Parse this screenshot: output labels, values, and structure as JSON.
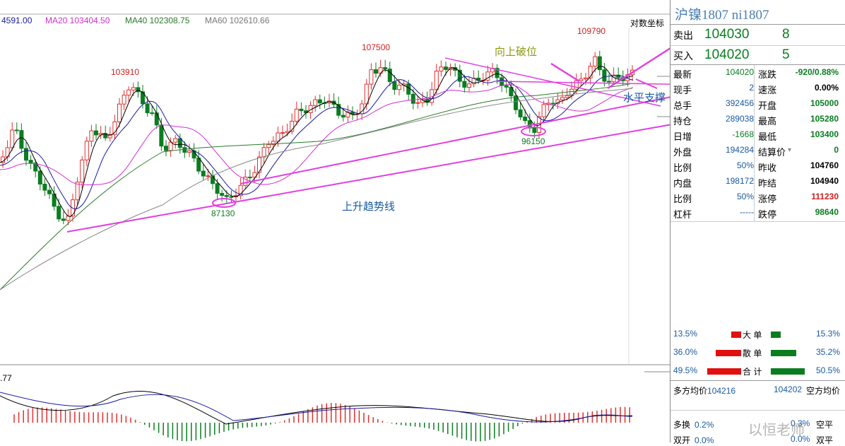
{
  "chart": {
    "legend": {
      "ma_first": "4591.00",
      "ma20": "MA20 103404.50",
      "ma40": "MA40 102308.75",
      "ma60": "MA60 102610.66"
    },
    "log_scale_button": "对数坐标",
    "annotations": {
      "high_107500": "107500",
      "high_103910": "103910",
      "high_109790": "109790",
      "low_87130": "87130",
      "low_96150": "96150",
      "breakout_up": "向上破位",
      "horizontal_support": "水平支撑",
      "uptrend_line": "上升趋势线"
    },
    "macd_label": ".77",
    "colors": {
      "up": "#e03030",
      "down": "#0a7d20",
      "ma5": "#000000",
      "ma10": "#1a1aa0",
      "ma20": "#d030d0",
      "ma40": "#2a7a2a",
      "ma60": "#888888",
      "annotation": "#e040e0"
    }
  },
  "panel": {
    "title": "沪镍1807  ni1807",
    "orderbook": {
      "sell_label": "卖出",
      "sell_price": "104030",
      "sell_volume": "8",
      "buy_label": "买入",
      "buy_price": "104020",
      "buy_volume": "5"
    },
    "stats": [
      {
        "l1": "最新",
        "v1": "104020",
        "l2": "涨跌",
        "v2": "-920/0.88%"
      },
      {
        "l1": "现手",
        "v1": "2",
        "l2": "速涨",
        "v2": "0.00%"
      },
      {
        "l1": "总手",
        "v1": "392456",
        "l2": "开盘",
        "v2": "105000"
      },
      {
        "l1": "持仓",
        "v1": "289038",
        "l2": "最高",
        "v2": "105280"
      },
      {
        "l1": "日增",
        "v1": "-1668",
        "l2": "最低",
        "v2": "103400"
      },
      {
        "l1": "外盘",
        "v1": "194284",
        "l2": "结算价",
        "v2": "0"
      },
      {
        "l1": "比例",
        "v1": "50%",
        "l2": "昨收",
        "v2": "104760"
      },
      {
        "l1": "内盘",
        "v1": "198172",
        "l2": "昨结",
        "v2": "104940"
      },
      {
        "l1": "比例",
        "v1": "50%",
        "l2": "涨停",
        "v2": "111230"
      },
      {
        "l1": "杠杆",
        "v1": "-----",
        "l2": "跌停",
        "v2": "98640"
      }
    ],
    "flows": [
      {
        "left": "13.5%",
        "label": "大 单",
        "right": "15.3%",
        "red": 0.3,
        "green": 0.3
      },
      {
        "left": "36.0%",
        "label": "散 单",
        "right": "35.2%",
        "red": 0.75,
        "green": 0.75
      },
      {
        "left": "49.5%",
        "label": "合 计",
        "right": "50.5%",
        "red": 1.0,
        "green": 1.0
      }
    ],
    "avg": {
      "long_label": "多方均价",
      "long_value": "104216",
      "short_value": "104202",
      "short_label": "空方均价"
    },
    "bottom": [
      {
        "label": "多换",
        "value": "0.2%",
        "right": "0.3%",
        "rlabel": "空平"
      },
      {
        "label": "双开",
        "value": "0.0%",
        "right": "0.0%",
        "rlabel": "双平"
      }
    ],
    "watermark": "以恒老师"
  }
}
